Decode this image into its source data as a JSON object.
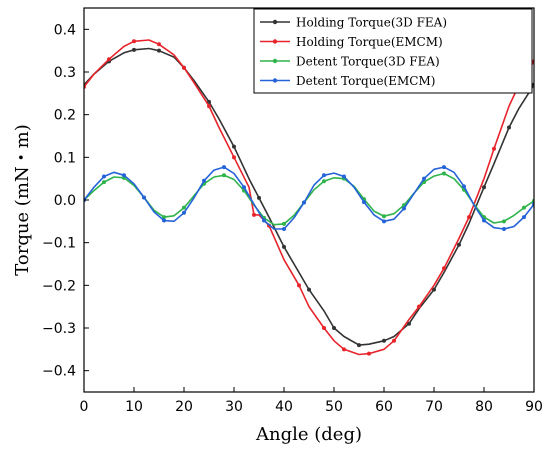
{
  "chart_data": {
    "type": "line",
    "title": "",
    "xlabel": "Angle (deg)",
    "ylabel": "Torque (mN・m)",
    "xlim": [
      0,
      90
    ],
    "ylim": [
      -0.45,
      0.45
    ],
    "xticks": [
      0,
      10,
      20,
      30,
      40,
      50,
      60,
      70,
      80,
      90
    ],
    "xtick_labels": [
      "0",
      "10",
      "20",
      "30",
      "40",
      "50",
      "60",
      "70",
      "80",
      "90"
    ],
    "yticks": [
      0.4,
      0.3,
      0.2,
      0.1,
      0.0,
      -0.1,
      -0.2,
      -0.3,
      -0.4
    ],
    "ytick_labels": [
      "0.4",
      "0.3",
      "0.2",
      "0.1",
      "0.0",
      "−0.1",
      "−0.2",
      "−0.3",
      "−0.4"
    ],
    "grid": false,
    "legend_position": "top-right",
    "series": [
      {
        "name": "Holding Torque(3D FEA)",
        "color": "#333333",
        "x": [
          0,
          2,
          5,
          8,
          10,
          13,
          15,
          18,
          20,
          22,
          25,
          27,
          30,
          33,
          35,
          37,
          40,
          43,
          45,
          48,
          50,
          52,
          55,
          57,
          60,
          62,
          65,
          67,
          70,
          72,
          75,
          77,
          80,
          82,
          85,
          87,
          90
        ],
        "y": [
          0.27,
          0.295,
          0.325,
          0.345,
          0.352,
          0.355,
          0.35,
          0.335,
          0.31,
          0.28,
          0.23,
          0.19,
          0.125,
          0.05,
          0.005,
          -0.04,
          -0.11,
          -0.17,
          -0.21,
          -0.26,
          -0.3,
          -0.32,
          -0.34,
          -0.338,
          -0.33,
          -0.32,
          -0.29,
          -0.255,
          -0.21,
          -0.17,
          -0.105,
          -0.055,
          0.03,
          0.085,
          0.17,
          0.215,
          0.27
        ]
      },
      {
        "name": "Holding Torque(EMCM)",
        "color": "#e8242a",
        "x": [
          0,
          2,
          5,
          8,
          10,
          13,
          15,
          18,
          20,
          22,
          25,
          27,
          30,
          33,
          34,
          35,
          37,
          40,
          43,
          45,
          48,
          50,
          52,
          55,
          57,
          60,
          62,
          65,
          67,
          70,
          72,
          75,
          77,
          80,
          82,
          85,
          87,
          90
        ],
        "y": [
          0.265,
          0.295,
          0.33,
          0.36,
          0.372,
          0.375,
          0.365,
          0.34,
          0.31,
          0.275,
          0.22,
          0.17,
          0.1,
          0.03,
          -0.035,
          -0.035,
          -0.06,
          -0.14,
          -0.2,
          -0.25,
          -0.3,
          -0.33,
          -0.35,
          -0.362,
          -0.36,
          -0.35,
          -0.33,
          -0.28,
          -0.25,
          -0.2,
          -0.16,
          -0.09,
          -0.04,
          0.05,
          0.12,
          0.22,
          0.27,
          0.325
        ]
      },
      {
        "name": "Detent Torque(3D FEA)",
        "color": "#2eb44a",
        "x": [
          0,
          2,
          4,
          6,
          8,
          10,
          12,
          14,
          16,
          18,
          20,
          22,
          24,
          26,
          28,
          30,
          32,
          34,
          36,
          38,
          40,
          42,
          44,
          46,
          48,
          50,
          52,
          54,
          56,
          58,
          60,
          62,
          64,
          66,
          68,
          70,
          72,
          74,
          76,
          78,
          80,
          82,
          84,
          86,
          88,
          90
        ],
        "y": [
          0.0,
          0.022,
          0.042,
          0.054,
          0.052,
          0.034,
          0.006,
          -0.024,
          -0.04,
          -0.037,
          -0.018,
          0.01,
          0.038,
          0.054,
          0.058,
          0.048,
          0.022,
          -0.012,
          -0.042,
          -0.058,
          -0.056,
          -0.036,
          -0.006,
          0.024,
          0.044,
          0.052,
          0.05,
          0.032,
          0.002,
          -0.026,
          -0.038,
          -0.032,
          -0.012,
          0.016,
          0.042,
          0.056,
          0.062,
          0.05,
          0.024,
          -0.01,
          -0.04,
          -0.054,
          -0.05,
          -0.036,
          -0.018,
          -0.002
        ]
      },
      {
        "name": "Detent Torque(EMCM)",
        "color": "#2563d9",
        "x": [
          0,
          2,
          4,
          6,
          8,
          10,
          12,
          14,
          16,
          18,
          20,
          22,
          24,
          26,
          28,
          30,
          32,
          34,
          36,
          38,
          40,
          42,
          44,
          46,
          48,
          50,
          52,
          54,
          56,
          58,
          60,
          62,
          64,
          66,
          68,
          70,
          72,
          74,
          76,
          78,
          80,
          82,
          84,
          86,
          88,
          90
        ],
        "y": [
          0.0,
          0.03,
          0.055,
          0.065,
          0.058,
          0.038,
          0.006,
          -0.028,
          -0.048,
          -0.05,
          -0.03,
          0.005,
          0.045,
          0.07,
          0.077,
          0.062,
          0.03,
          -0.01,
          -0.048,
          -0.068,
          -0.068,
          -0.042,
          -0.006,
          0.035,
          0.058,
          0.063,
          0.055,
          0.03,
          -0.005,
          -0.035,
          -0.05,
          -0.045,
          -0.02,
          0.015,
          0.05,
          0.072,
          0.077,
          0.065,
          0.032,
          -0.012,
          -0.048,
          -0.065,
          -0.068,
          -0.062,
          -0.04,
          -0.01
        ]
      }
    ]
  }
}
